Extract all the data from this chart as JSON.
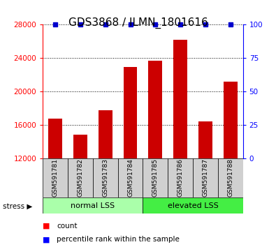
{
  "title": "GDS3868 / ILMN_1801616",
  "samples": [
    "GSM591781",
    "GSM591782",
    "GSM591783",
    "GSM591784",
    "GSM591785",
    "GSM591786",
    "GSM591787",
    "GSM591788"
  ],
  "counts": [
    16700,
    14800,
    17700,
    22900,
    23700,
    26200,
    16400,
    21200
  ],
  "percentile_ranks": [
    100,
    100,
    100,
    100,
    100,
    100,
    100,
    100
  ],
  "bar_color": "#cc0000",
  "percentile_color": "#0000cc",
  "ylim_left": [
    12000,
    28000
  ],
  "ylim_right": [
    0,
    100
  ],
  "yticks_left": [
    12000,
    16000,
    20000,
    24000,
    28000
  ],
  "yticks_right": [
    0,
    25,
    50,
    75,
    100
  ],
  "group_defs": [
    {
      "start": 0,
      "end": 3,
      "label": "normal LSS",
      "color": "#aaffaa"
    },
    {
      "start": 4,
      "end": 7,
      "label": "elevated LSS",
      "color": "#44ee44"
    }
  ],
  "stress_label": "stress ▶",
  "legend_count_label": "count",
  "legend_percentile_label": "percentile rank within the sample",
  "bar_width": 0.55,
  "label_box_color": "#d0d0d0",
  "title_fontsize": 11
}
